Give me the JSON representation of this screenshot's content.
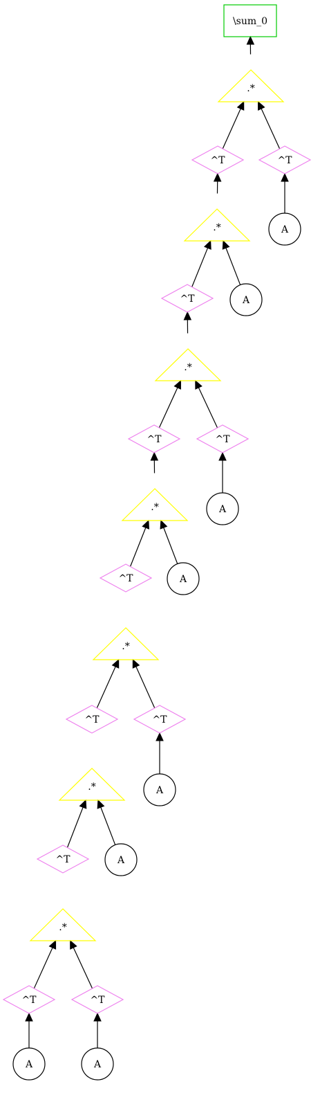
{
  "colors": {
    "sum": "#00cc00",
    "multiply": "#ffff00",
    "transpose": "#ee82ee",
    "leaf": "#000000",
    "edge": "#000000",
    "background": "#ffffff"
  },
  "node_shapes": {
    "sum": "box",
    "multiply": "triangle",
    "transpose": "diamond",
    "leaf": "circle"
  },
  "nodes": [
    {
      "id": "s0",
      "kind": "sum",
      "label": "\\sum_0"
    },
    {
      "id": "m1",
      "kind": "multiply",
      "label": ".*"
    },
    {
      "id": "t1",
      "kind": "transpose",
      "label": "^T"
    },
    {
      "id": "t2",
      "kind": "transpose",
      "label": "^T"
    },
    {
      "id": "a1",
      "kind": "leaf",
      "label": "A"
    },
    {
      "id": "m2",
      "kind": "multiply",
      "label": ".*"
    },
    {
      "id": "t3",
      "kind": "transpose",
      "label": "^T"
    },
    {
      "id": "a2",
      "kind": "leaf",
      "label": "A"
    },
    {
      "id": "m3",
      "kind": "multiply",
      "label": ".*"
    },
    {
      "id": "t4",
      "kind": "transpose",
      "label": "^T"
    },
    {
      "id": "t5",
      "kind": "transpose",
      "label": "^T"
    },
    {
      "id": "a3",
      "kind": "leaf",
      "label": "A"
    },
    {
      "id": "m4",
      "kind": "multiply",
      "label": ".*"
    },
    {
      "id": "t6",
      "kind": "transpose",
      "label": "^T"
    },
    {
      "id": "a4",
      "kind": "leaf",
      "label": "A"
    },
    {
      "id": "m5",
      "kind": "multiply",
      "label": ".*"
    },
    {
      "id": "t7",
      "kind": "transpose",
      "label": "^T"
    },
    {
      "id": "t8",
      "kind": "transpose",
      "label": "^T"
    },
    {
      "id": "a5",
      "kind": "leaf",
      "label": "A"
    },
    {
      "id": "m6",
      "kind": "multiply",
      "label": ".*"
    },
    {
      "id": "t9",
      "kind": "transpose",
      "label": "^T"
    },
    {
      "id": "a6",
      "kind": "leaf",
      "label": "A"
    },
    {
      "id": "m7",
      "kind": "multiply",
      "label": ".*"
    },
    {
      "id": "t10",
      "kind": "transpose",
      "label": "^T"
    },
    {
      "id": "t11",
      "kind": "transpose",
      "label": "^T"
    },
    {
      "id": "a7",
      "kind": "leaf",
      "label": "A"
    },
    {
      "id": "a8",
      "kind": "leaf",
      "label": "A"
    }
  ],
  "edges": [
    {
      "from": "m1",
      "to": "s0"
    },
    {
      "from": "t1",
      "to": "m1"
    },
    {
      "from": "t2",
      "to": "m1"
    },
    {
      "from": "a1",
      "to": "t2"
    },
    {
      "from": "m2",
      "to": "t1"
    },
    {
      "from": "t3",
      "to": "m2"
    },
    {
      "from": "a2",
      "to": "m2"
    },
    {
      "from": "m3",
      "to": "t3"
    },
    {
      "from": "t4",
      "to": "m3"
    },
    {
      "from": "t5",
      "to": "m3"
    },
    {
      "from": "a3",
      "to": "t5"
    },
    {
      "from": "m4",
      "to": "t4"
    },
    {
      "from": "t6",
      "to": "m4"
    },
    {
      "from": "a4",
      "to": "m4"
    },
    {
      "from": "m5",
      "to": "t6"
    },
    {
      "from": "t7",
      "to": "m5"
    },
    {
      "from": "t8",
      "to": "m5"
    },
    {
      "from": "a5",
      "to": "t8"
    },
    {
      "from": "m6",
      "to": "t7"
    },
    {
      "from": "t9",
      "to": "m6"
    },
    {
      "from": "a6",
      "to": "m6"
    },
    {
      "from": "m7",
      "to": "t9"
    },
    {
      "from": "t10",
      "to": "m7"
    },
    {
      "from": "t11",
      "to": "m7"
    },
    {
      "from": "a7",
      "to": "t10"
    },
    {
      "from": "a8",
      "to": "t11"
    }
  ]
}
